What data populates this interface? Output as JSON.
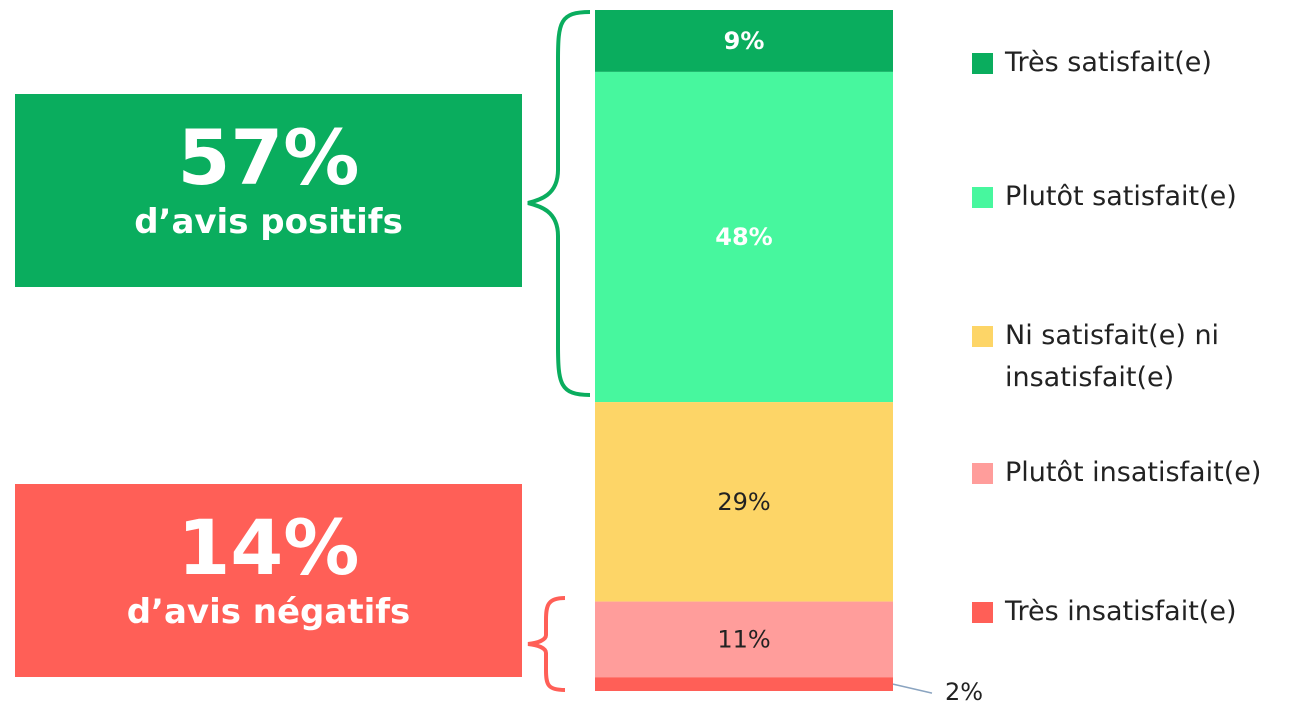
{
  "chart_data": {
    "type": "stacked-bar",
    "series": [
      {
        "name": "Très satisfait(e)",
        "color": "#0aad5e",
        "values": [
          9
        ],
        "value_labels": [
          "9%"
        ]
      },
      {
        "name": "Plutôt satisfait(e)",
        "color": "#47f79e",
        "values": [
          48
        ],
        "value_labels": [
          "48%"
        ]
      },
      {
        "name": "Ni satisfait(e) ni insatisfait(e)",
        "color": "#fdd567",
        "values": [
          29
        ],
        "value_labels": [
          "29%"
        ]
      },
      {
        "name": "Plutôt insatisfait(e)",
        "color": "#ff9d9b",
        "values": [
          11
        ],
        "value_labels": [
          "11%"
        ]
      },
      {
        "name": "Très insatisfait(e)",
        "color": "#ff5f57",
        "values": [
          2
        ],
        "value_labels": [
          "2%"
        ]
      }
    ],
    "annotations": [
      {
        "value": "57%",
        "text": "d’avis positifs",
        "color": "#0aad5e"
      },
      {
        "value": "14%",
        "text": "d’avis négatifs",
        "color": "#ff5f57"
      }
    ]
  }
}
